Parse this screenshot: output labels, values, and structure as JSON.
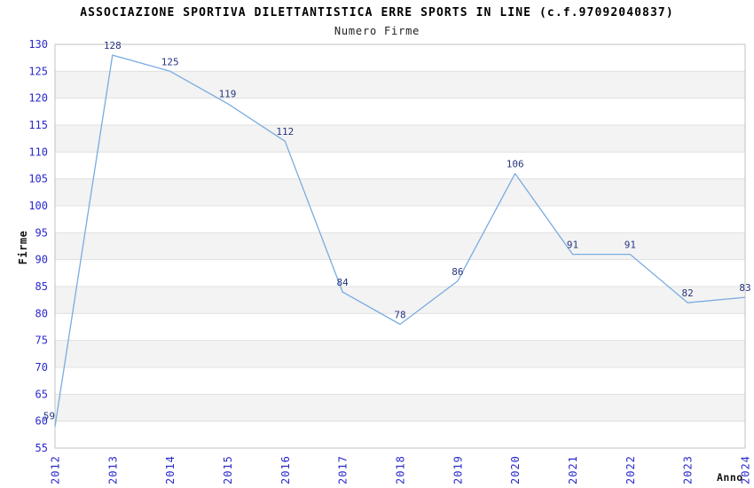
{
  "chart_data": {
    "type": "line",
    "title": "ASSOCIAZIONE SPORTIVA DILETTANTISTICA ERRE SPORTS IN LINE (c.f.97092040837)",
    "subtitle": "Numero Firme",
    "xlabel": "Anno",
    "ylabel": "Firme",
    "categories": [
      "2012",
      "2013",
      "2014",
      "2015",
      "2016",
      "2017",
      "2018",
      "2019",
      "2020",
      "2021",
      "2022",
      "2023",
      "2024"
    ],
    "values": [
      59,
      128,
      125,
      119,
      112,
      84,
      78,
      86,
      106,
      91,
      91,
      82,
      83
    ],
    "ylim": [
      55,
      130
    ],
    "ytick_step": 5,
    "yticks": [
      55,
      60,
      65,
      70,
      75,
      80,
      85,
      90,
      95,
      100,
      105,
      110,
      115,
      120,
      125,
      130
    ],
    "grid": "horizontal-bands",
    "legend": "none",
    "point_labels_shown": true,
    "colors": {
      "line": "#79ace0",
      "tick_label": "#2929cc",
      "data_label": "#27367f",
      "band": "#f3f3f3",
      "gridline": "#e0e0e0",
      "border": "#c0c0c0",
      "title": "#000000",
      "subtitle": "#222222",
      "axis_title": "#111111",
      "background": "#ffffff"
    }
  }
}
